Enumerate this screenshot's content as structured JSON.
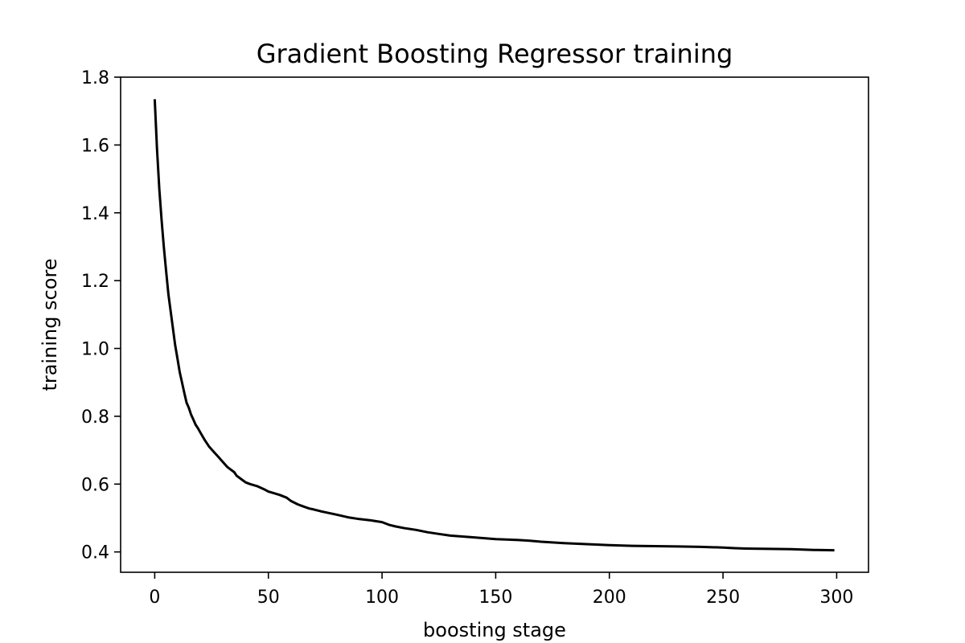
{
  "chart_data": {
    "type": "line",
    "title": "Gradient Boosting Regressor training",
    "xlabel": "boosting stage",
    "ylabel": "training score",
    "xlim": [
      -15,
      314
    ],
    "ylim": [
      0.34,
      1.8
    ],
    "xticks": [
      0,
      50,
      100,
      150,
      200,
      250,
      300
    ],
    "yticks": [
      0.4,
      0.6,
      0.8,
      1.0,
      1.2,
      1.4,
      1.6,
      1.8
    ],
    "ytick_labels": [
      "0.4",
      "0.6",
      "0.8",
      "1.0",
      "1.2",
      "1.4",
      "1.6",
      "1.8"
    ],
    "grid": false,
    "line_color": "#000000",
    "series": [
      {
        "x": [
          0,
          1,
          2,
          3,
          4,
          5,
          6,
          7,
          8,
          9,
          10,
          11,
          12,
          13,
          14,
          15,
          16,
          17,
          18,
          19,
          20,
          22,
          24,
          26,
          28,
          30,
          32,
          35,
          36,
          38,
          40,
          42,
          45,
          48,
          50,
          53,
          55,
          58,
          60,
          63,
          65,
          68,
          70,
          73,
          75,
          80,
          85,
          90,
          95,
          100,
          103,
          106,
          110,
          115,
          120,
          125,
          130,
          140,
          150,
          160,
          165,
          170,
          180,
          190,
          200,
          210,
          220,
          230,
          240,
          250,
          255,
          260,
          270,
          280,
          290,
          299
        ],
        "y": [
          1.735,
          1.59,
          1.47,
          1.38,
          1.3,
          1.23,
          1.16,
          1.11,
          1.06,
          1.01,
          0.97,
          0.93,
          0.9,
          0.87,
          0.84,
          0.825,
          0.805,
          0.79,
          0.775,
          0.765,
          0.753,
          0.73,
          0.71,
          0.695,
          0.68,
          0.665,
          0.65,
          0.635,
          0.625,
          0.615,
          0.605,
          0.6,
          0.594,
          0.585,
          0.578,
          0.572,
          0.568,
          0.56,
          0.55,
          0.54,
          0.535,
          0.528,
          0.525,
          0.52,
          0.517,
          0.51,
          0.502,
          0.497,
          0.493,
          0.488,
          0.48,
          0.475,
          0.47,
          0.465,
          0.458,
          0.453,
          0.448,
          0.443,
          0.438,
          0.435,
          0.433,
          0.43,
          0.426,
          0.423,
          0.42,
          0.418,
          0.417,
          0.416,
          0.415,
          0.413,
          0.411,
          0.41,
          0.409,
          0.408,
          0.406,
          0.405
        ]
      }
    ]
  }
}
